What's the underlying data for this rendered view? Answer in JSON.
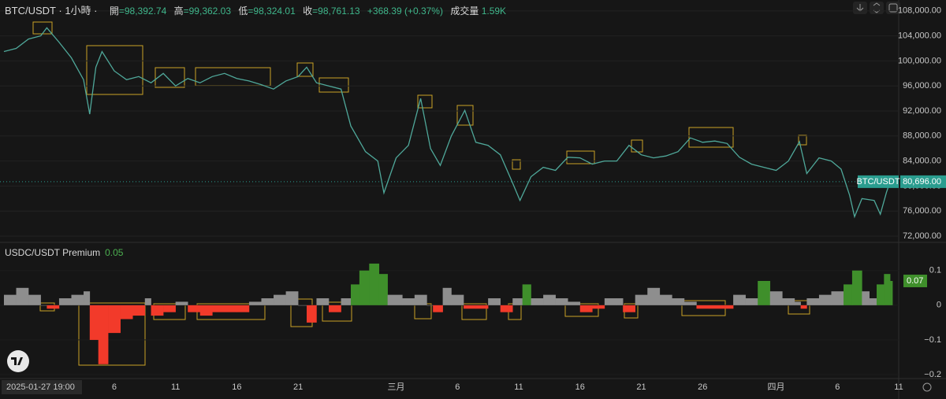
{
  "chart_data": [
    {
      "type": "line",
      "header": {
        "symbol": "BTC/USDT · 1小時 ·",
        "fields": [
          {
            "label": "開",
            "value": "=98,392.74"
          },
          {
            "label": "高",
            "value": "=99,362.03"
          },
          {
            "label": "低",
            "value": "=98,324.01"
          },
          {
            "label": "收",
            "value": "=98,761.13"
          }
        ],
        "change": "+368.39 (+0.37%)",
        "volume_label": "成交量",
        "volume_value": "1.59K"
      },
      "series_tag": "BTC/USDT",
      "last_price": {
        "value": 80696,
        "label": "80,696.00"
      },
      "color": "#4fa89a",
      "tag_color": "#2a9d8f",
      "grid": true,
      "xlim": [
        27.68,
        101
      ],
      "ylim": [
        71370,
        109740
      ],
      "yticks": [
        {
          "value": 72000,
          "label": "72,000.00"
        },
        {
          "value": 76000,
          "label": "76,000.00"
        },
        {
          "value": 80000,
          "label": "80,000.00"
        },
        {
          "value": 84000,
          "label": "84,000.00"
        },
        {
          "value": 88000,
          "label": "88,000.00"
        },
        {
          "value": 92000,
          "label": "92,000.00"
        },
        {
          "value": 96000,
          "label": "96,000.00"
        },
        {
          "value": 100000,
          "label": "100,000.00"
        },
        {
          "value": 104000,
          "label": "104,000.00"
        },
        {
          "value": 108000,
          "label": "108,000.00"
        }
      ],
      "x": [
        28,
        29,
        30,
        31,
        31.5,
        32.5,
        33.5,
        34.5,
        35,
        35.5,
        36,
        37,
        38,
        39,
        40,
        41,
        42,
        43,
        44,
        45,
        46,
        47,
        48,
        49,
        50,
        51,
        52,
        52.7,
        53.5,
        54.5,
        55.5,
        56.3,
        57.5,
        58.5,
        59,
        60,
        61,
        62,
        62.8,
        63.6,
        64.5,
        65.6,
        66.5,
        67.5,
        68.5,
        69.5,
        70.1,
        71,
        72,
        73,
        74,
        75,
        76,
        77,
        78,
        79,
        80,
        81,
        82,
        83,
        84,
        85,
        86,
        87,
        88,
        89,
        90,
        91,
        92,
        92.9,
        93.5,
        94.5,
        95.5,
        96.3,
        97,
        97.4,
        98,
        99,
        99.5,
        100,
        100.3
      ],
      "values": [
        101500,
        102000,
        103500,
        104000,
        105300,
        103000,
        100500,
        97000,
        91500,
        99000,
        101500,
        98400,
        97000,
        97500,
        96500,
        98000,
        96000,
        97200,
        96500,
        97500,
        98000,
        97200,
        96800,
        96200,
        95500,
        96800,
        97500,
        99000,
        96500,
        96000,
        95500,
        89600,
        85500,
        84000,
        78900,
        84500,
        86500,
        94000,
        86000,
        83300,
        88000,
        92100,
        87000,
        86500,
        85000,
        80500,
        77700,
        81500,
        83000,
        82500,
        84600,
        84500,
        83500,
        84000,
        84000,
        86500,
        85000,
        84500,
        84800,
        85500,
        87700,
        87000,
        87200,
        86800,
        84600,
        83500,
        83000,
        82500,
        84000,
        87100,
        82000,
        84500,
        84000,
        82700,
        78500,
        75100,
        78000,
        77700,
        75500,
        79000,
        80696
      ]
    },
    {
      "type": "bar",
      "title": "USDC/USDT Premium",
      "threshold": 0.05,
      "colors": {
        "above": "#3f8f2b",
        "neutral": "#8e8e8e",
        "below": "#f23a2a"
      },
      "last_value": 0.07,
      "x_start_label": "2025-01-27  19:00",
      "xlim": [
        27.68,
        101
      ],
      "xticks": [
        {
          "value": 37,
          "label": "6"
        },
        {
          "value": 42,
          "label": "11"
        },
        {
          "value": 47,
          "label": "16"
        },
        {
          "value": 52,
          "label": "21"
        },
        {
          "value": 60,
          "label": "三月"
        },
        {
          "value": 65,
          "label": "6"
        },
        {
          "value": 70,
          "label": "11"
        },
        {
          "value": 75,
          "label": "16"
        },
        {
          "value": 80,
          "label": "21"
        },
        {
          "value": 85,
          "label": "26"
        },
        {
          "value": 91,
          "label": "四月"
        },
        {
          "value": 96,
          "label": "6"
        },
        {
          "value": 101,
          "label": "11"
        }
      ],
      "ylim": [
        -0.209,
        0.172
      ],
      "yticks": [
        {
          "value": -0.2,
          "label": "−0.2"
        },
        {
          "value": -0.1,
          "label": "−0.1"
        },
        0,
        0.1
      ],
      "x": [
        28,
        29,
        30,
        31,
        31.5,
        32.5,
        33.5,
        34.5,
        35,
        35.7,
        36.5,
        37.5,
        38.5,
        39.5,
        40,
        41,
        42,
        43,
        44,
        45,
        46,
        47,
        48,
        49,
        50,
        51,
        52,
        52.7,
        53.5,
        54.5,
        55.5,
        56.3,
        57,
        57.8,
        58.6,
        59.3,
        60.5,
        61.5,
        62.5,
        63,
        63.8,
        64.5,
        65.5,
        66.5,
        67.5,
        68.5,
        69.5,
        70.3,
        71,
        72,
        73,
        74,
        75,
        76,
        77,
        78,
        78.5,
        79.5,
        80.5,
        81.5,
        82.5,
        83.5,
        84.5,
        85.5,
        86.5,
        87.5,
        88.5,
        89.5,
        90.5,
        91.5,
        92.5,
        93,
        93.5,
        94.5,
        95.5,
        96.5,
        97.2,
        98,
        98.6,
        99.2,
        99.8,
        100.3
      ],
      "values": [
        0.03,
        0.05,
        0.03,
        0.0,
        -0.01,
        0.02,
        0.03,
        0.04,
        -0.1,
        -0.17,
        -0.08,
        -0.04,
        -0.03,
        0.02,
        -0.03,
        -0.02,
        0.01,
        -0.02,
        -0.03,
        -0.02,
        -0.02,
        -0.02,
        0.01,
        0.02,
        0.03,
        0.04,
        0.0,
        -0.05,
        0.02,
        -0.02,
        0.02,
        0.06,
        0.1,
        0.12,
        0.09,
        0.03,
        0.02,
        0.03,
        0.0,
        -0.02,
        0.05,
        0.03,
        -0.01,
        -0.01,
        0.02,
        -0.02,
        0.02,
        0.06,
        0.02,
        0.03,
        0.02,
        0.01,
        -0.02,
        -0.01,
        0.02,
        0.02,
        -0.02,
        0.03,
        0.05,
        0.03,
        0.02,
        0.01,
        -0.01,
        -0.01,
        -0.01,
        0.03,
        0.02,
        0.07,
        0.04,
        0.02,
        0.01,
        -0.01,
        0.02,
        0.03,
        0.04,
        0.06,
        0.1,
        0.04,
        0.02,
        0.06,
        0.09,
        0.07
      ]
    }
  ]
}
